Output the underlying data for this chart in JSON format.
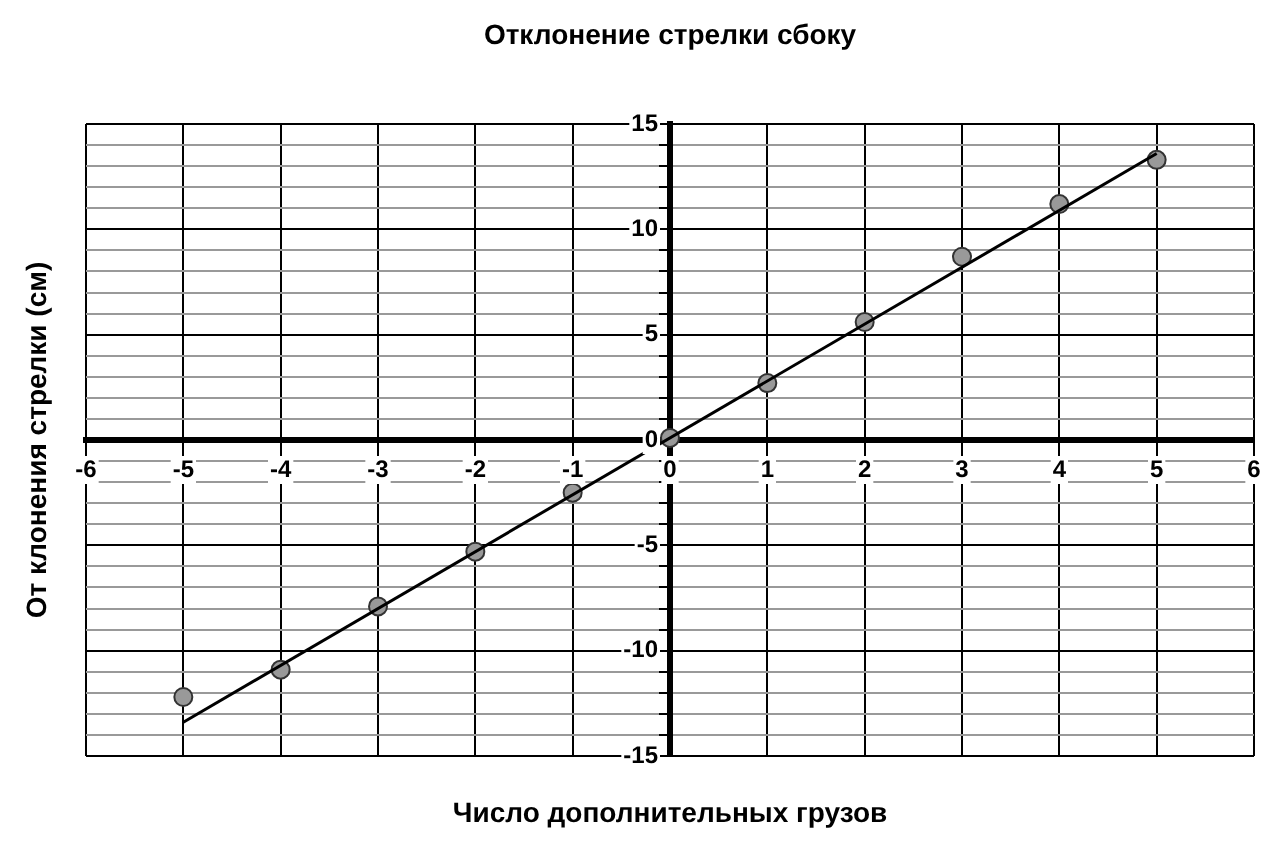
{
  "chart_data": {
    "type": "scatter",
    "title": "Отклонение стрелки сбоку",
    "xlabel": "Число дополнительных грузов",
    "ylabel": "От клонения стрелки (см)",
    "xlim": [
      -6,
      6
    ],
    "xticks": [
      -6,
      -5,
      -4,
      -3,
      -2,
      -1,
      0,
      1,
      2,
      3,
      4,
      5,
      6
    ],
    "ylim": [
      -15,
      15
    ],
    "yticks": [
      -15,
      {
        "value": -14,
        "label": null
      },
      {
        "value": -13,
        "label": null
      },
      {
        "value": -12,
        "label": null
      },
      {
        "value": -11,
        "label": null
      },
      -10,
      {
        "value": -9,
        "label": null
      },
      {
        "value": -8,
        "label": null
      },
      {
        "value": -7,
        "label": null
      },
      {
        "value": -6,
        "label": null
      },
      -5,
      {
        "value": -4,
        "label": null
      },
      {
        "value": -3,
        "label": null
      },
      {
        "value": -2,
        "label": null
      },
      {
        "value": -1,
        "label": null
      },
      0,
      {
        "value": 1,
        "label": null
      },
      {
        "value": 2,
        "label": null
      },
      {
        "value": 3,
        "label": null
      },
      {
        "value": 4,
        "label": null
      },
      5,
      {
        "value": 6,
        "label": null
      },
      {
        "value": 7,
        "label": null
      },
      {
        "value": 8,
        "label": null
      },
      {
        "value": 9,
        "label": null
      },
      10,
      {
        "value": 11,
        "label": null
      },
      {
        "value": 12,
        "label": null
      },
      {
        "value": 13,
        "label": null
      },
      {
        "value": 14,
        "label": null
      },
      15
    ],
    "grid": true,
    "series": [
      {
        "marker": "circle",
        "color": "#999999",
        "x": [
          -5,
          -4,
          -3,
          -2,
          -1,
          0,
          1,
          2,
          3,
          4,
          5
        ],
        "values": [
          -12.2,
          -10.9,
          -7.9,
          -5.3,
          -2.5,
          0.1,
          2.7,
          5.6,
          8.7,
          11.2,
          13.3
        ]
      },
      {
        "type": "line",
        "marker": "none",
        "color": "#000000",
        "x": [
          -5,
          5
        ],
        "values": [
          -13.4,
          13.6
        ]
      }
    ]
  }
}
